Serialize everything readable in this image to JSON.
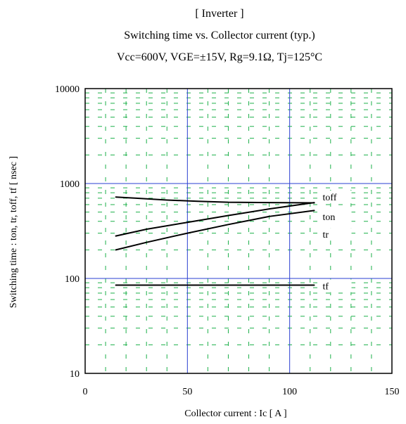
{
  "chart_data": {
    "type": "line",
    "title": {
      "line1": "[ Inverter ]",
      "line2": "Switching time  vs.  Collector current  (typ.)",
      "line3": "Vcc=600V, VGE=±15V, Rg=9.1Ω, Tj=125°C"
    },
    "xlabel": "Collector current  :  Ic  [ A ]",
    "ylabel": "Switching time  :  ton, tr, toff, tf  [ nsec ]",
    "xlim": [
      0,
      150
    ],
    "ylim": [
      10,
      10000
    ],
    "y_scale": "log",
    "x_ticks": [
      "0",
      "50",
      "100",
      "150"
    ],
    "y_ticks": [
      "10",
      "100",
      "1000",
      "10000"
    ],
    "grid": "major solid blue, minor dashed green",
    "series": [
      {
        "name": "toff",
        "x": [
          15,
          25,
          40,
          55,
          70,
          90,
          112
        ],
        "y": [
          720,
          700,
          670,
          650,
          635,
          630,
          625
        ]
      },
      {
        "name": "ton",
        "x": [
          15,
          30,
          50,
          70,
          90,
          112
        ],
        "y": [
          280,
          330,
          390,
          460,
          540,
          630
        ]
      },
      {
        "name": "tr",
        "x": [
          15,
          30,
          50,
          70,
          90,
          112
        ],
        "y": [
          200,
          240,
          300,
          370,
          450,
          520
        ]
      },
      {
        "name": "tf",
        "x": [
          15,
          112
        ],
        "y": [
          85,
          85
        ]
      }
    ],
    "colors": {
      "frame": "#000000",
      "major_grid": "#2a3fd1",
      "minor_grid": "#1db04a",
      "series": "#000000"
    }
  }
}
